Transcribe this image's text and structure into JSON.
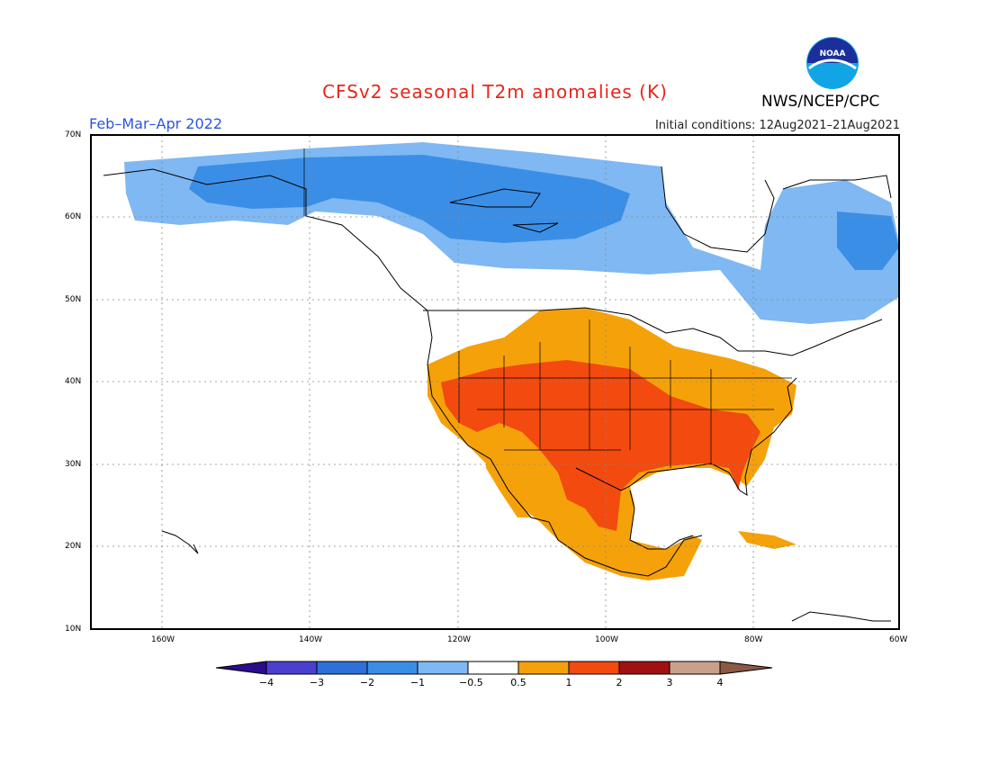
{
  "title": "CFSv2 seasonal T2m anomalies (K)",
  "subtitle": "Feb–Mar–Apr 2022",
  "initial_conditions": "Initial conditions: 12Aug2021–21Aug2021",
  "agency": "NWS/NCEP/CPC",
  "logo_text": "NOAA",
  "lat_labels": [
    "70N",
    "60N",
    "50N",
    "40N",
    "30N",
    "20N",
    "10N"
  ],
  "lon_labels": [
    "160W",
    "140W",
    "120W",
    "100W",
    "80W",
    "60W"
  ],
  "colorbar": {
    "labels": [
      "-4",
      "-3",
      "-2",
      "-1",
      "-0.5",
      "0.5",
      "1",
      "2",
      "3",
      "4"
    ],
    "colors": [
      "#2a0c8c",
      "#4b3fd0",
      "#2f6fd8",
      "#3b8ee6",
      "#7fb8f2",
      "#ffffff",
      "#f5a10a",
      "#f24a0f",
      "#a11111",
      "#c8a08c",
      "#8a5a44"
    ]
  }
}
